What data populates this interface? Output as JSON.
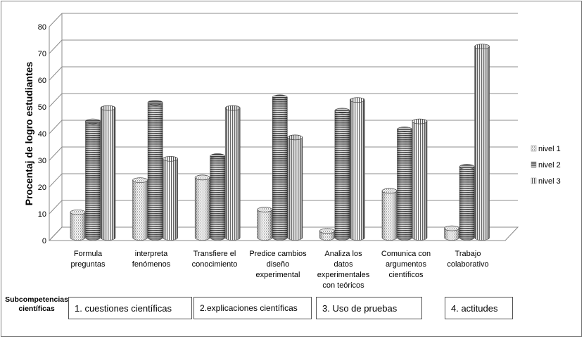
{
  "chart_data": {
    "type": "bar",
    "ylabel": "Procentaj de logro estudiantes",
    "ylim": [
      0,
      80
    ],
    "yticks": [
      0,
      10,
      20,
      30,
      40,
      50,
      60,
      70,
      80
    ],
    "grid": true,
    "legend_position": "right",
    "categories": [
      [
        "Formula",
        "preguntas"
      ],
      [
        "interpreta",
        "fenómenos"
      ],
      [
        "Transfiere el",
        "conocimiento"
      ],
      [
        "Predice cambios",
        "diseño",
        "experimental"
      ],
      [
        "Analiza los",
        "datos",
        "experimentales",
        "con teóricos"
      ],
      [
        "Comunica  con",
        "argumentos",
        "científicos"
      ],
      [
        "Trabajo",
        "colaborativo"
      ]
    ],
    "series": [
      {
        "name": "nivel 1",
        "values": [
          9,
          21,
          22,
          10,
          2,
          17,
          3
        ]
      },
      {
        "name": "nivel 2",
        "values": [
          43,
          50,
          30,
          52,
          47,
          40,
          26
        ]
      },
      {
        "name": "nivel 3",
        "values": [
          48,
          29,
          48,
          37,
          51,
          43,
          71
        ]
      }
    ]
  },
  "subcompetencias_label": [
    "Subcompetencias",
    "científicas"
  ],
  "groups": [
    "1. cuestiones científicas",
    "2.explicaciones científicas",
    "3. Uso de pruebas",
    "4. actitudes"
  ]
}
